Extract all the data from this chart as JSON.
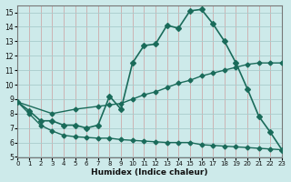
{
  "xlabel": "Humidex (Indice chaleur)",
  "bg_color": "#cdeaea",
  "grid_color_teal": "#a8cccc",
  "grid_color_pink": "#ccaaaa",
  "line_color": "#1a6b5a",
  "xlim": [
    0,
    23
  ],
  "ylim": [
    5,
    15.5
  ],
  "yticks": [
    5,
    6,
    7,
    8,
    9,
    10,
    11,
    12,
    13,
    14,
    15
  ],
  "xticks": [
    0,
    1,
    2,
    3,
    4,
    5,
    6,
    7,
    8,
    9,
    10,
    11,
    12,
    13,
    14,
    15,
    16,
    17,
    18,
    19,
    20,
    21,
    22,
    23
  ],
  "series": [
    {
      "x": [
        0,
        1,
        2,
        3,
        4,
        5,
        6,
        7,
        8,
        9,
        10,
        11,
        12,
        13,
        14,
        15,
        16,
        17,
        18,
        19,
        20,
        21,
        22,
        23
      ],
      "y": [
        8.8,
        8.2,
        7.5,
        7.5,
        7.2,
        7.2,
        7.0,
        7.2,
        9.2,
        8.3,
        11.5,
        12.7,
        12.8,
        14.1,
        13.9,
        15.1,
        15.2,
        14.2,
        13.0,
        11.5,
        9.7,
        7.8,
        6.7,
        5.5
      ]
    },
    {
      "x": [
        0,
        3,
        5,
        7,
        8,
        9,
        10,
        11,
        12,
        13,
        14,
        15,
        16,
        17,
        18,
        19,
        20,
        21,
        22,
        23
      ],
      "y": [
        8.8,
        8.0,
        8.3,
        8.5,
        8.6,
        8.7,
        9.0,
        9.3,
        9.5,
        9.8,
        10.1,
        10.3,
        10.6,
        10.8,
        11.0,
        11.2,
        11.4,
        11.5,
        11.5,
        11.5
      ]
    },
    {
      "x": [
        0,
        1,
        2,
        3,
        4,
        5,
        6,
        7,
        8,
        9,
        10,
        11,
        12,
        13,
        14,
        15,
        16,
        17,
        18,
        19,
        20,
        21,
        22,
        23
      ],
      "y": [
        8.8,
        8.0,
        7.2,
        6.8,
        6.5,
        6.4,
        6.35,
        6.3,
        6.3,
        6.2,
        6.15,
        6.1,
        6.05,
        6.0,
        6.0,
        6.0,
        5.85,
        5.8,
        5.75,
        5.7,
        5.65,
        5.6,
        5.55,
        5.5
      ]
    }
  ]
}
